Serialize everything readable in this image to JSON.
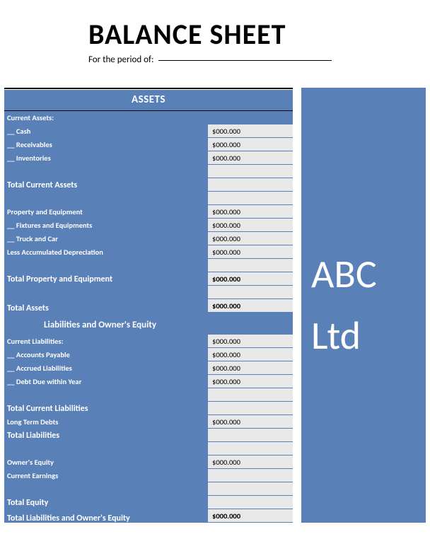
{
  "title": "BALANCE SHEET",
  "period_label": "For the period of:",
  "brand": {
    "line1": "ABC",
    "line2": "Ltd"
  },
  "colors": {
    "panel": "#5a80b8",
    "value_bg": "#e8e8e8",
    "text_light": "#ffffff",
    "text_dark": "#000000"
  },
  "section_assets": "ASSETS",
  "rows": {
    "current_assets": "Current Assets:",
    "cash": "__ Cash",
    "cash_v": "$000.000",
    "receivables": "__ Receivables",
    "receivables_v": "$000.000",
    "inventories": "__ Inventories",
    "inventories_v": "$000.000",
    "total_current_assets": "Total Current Assets",
    "property_equipment": "Property and Equipment",
    "property_equipment_v": "$000.000",
    "fixtures": "__ Fixtures and Equipments",
    "fixtures_v": "$000.000",
    "truck": "__ Truck and Car",
    "truck_v": "$000.000",
    "depreciation": "Less Accumulated Depreciation",
    "depreciation_v": "$000.000",
    "total_property": "Total Property and Equipment",
    "total_property_v": "$000.000",
    "total_assets": "Total Assets",
    "total_assets_v": "$000.000",
    "liab_heading": "Liabilities and Owner's Equity",
    "current_liab": "Current Liabilities:",
    "current_liab_v": "$000.000",
    "accounts_payable": "__ Accounts Payable",
    "accounts_payable_v": "$000.000",
    "accrued": "__ Accrued Liabilities",
    "accrued_v": "$000.000",
    "debt_due": "__ Debt Due within Year",
    "debt_due_v": "$000.000",
    "total_current_liab": "Total Current Liabilities",
    "long_term": "Long Term Debts",
    "long_term_v": "$000.000",
    "total_liab": "Total Liabilities",
    "owners_equity": "Owner's Equity",
    "owners_equity_v": "$000.000",
    "current_earnings": "Current Earnings",
    "total_equity": "Total Equity",
    "total_liab_equity": "Total Liabilities and Owner's Equity",
    "total_liab_equity_v": "$000.000"
  }
}
